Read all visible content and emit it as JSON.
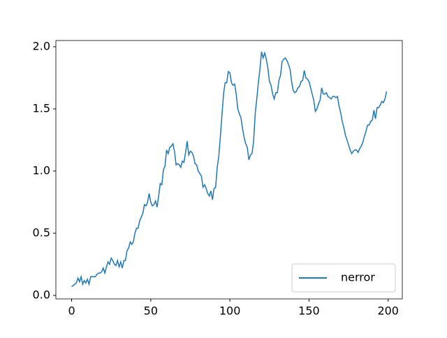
{
  "chart_data": {
    "type": "line",
    "x": [
      0,
      1,
      2,
      3,
      4,
      5,
      6,
      7,
      8,
      9,
      10,
      11,
      12,
      13,
      14,
      15,
      16,
      17,
      18,
      19,
      20,
      21,
      22,
      23,
      24,
      25,
      26,
      27,
      28,
      29,
      30,
      31,
      32,
      33,
      34,
      35,
      36,
      37,
      38,
      39,
      40,
      41,
      42,
      43,
      44,
      45,
      46,
      47,
      48,
      49,
      50,
      51,
      52,
      53,
      54,
      55,
      56,
      57,
      58,
      59,
      60,
      61,
      62,
      63,
      64,
      65,
      66,
      67,
      68,
      69,
      70,
      71,
      72,
      73,
      74,
      75,
      76,
      77,
      78,
      79,
      80,
      81,
      82,
      83,
      84,
      85,
      86,
      87,
      88,
      89,
      90,
      91,
      92,
      93,
      94,
      95,
      96,
      97,
      98,
      99,
      100,
      101,
      102,
      103,
      104,
      105,
      106,
      107,
      108,
      109,
      110,
      111,
      112,
      113,
      114,
      115,
      116,
      117,
      118,
      119,
      120,
      121,
      122,
      123,
      124,
      125,
      126,
      127,
      128,
      129,
      130,
      131,
      132,
      133,
      134,
      135,
      136,
      137,
      138,
      139,
      140,
      141,
      142,
      143,
      144,
      145,
      146,
      147,
      148,
      149,
      150,
      151,
      152,
      153,
      154,
      155,
      156,
      157,
      158,
      159,
      160,
      161,
      162,
      163,
      164,
      165,
      166,
      167,
      168,
      169,
      170,
      171,
      172,
      173,
      174,
      175,
      176,
      177,
      178,
      179,
      180,
      181,
      182,
      183,
      184,
      185,
      186,
      187,
      188,
      189,
      190,
      191,
      192,
      193,
      194,
      195,
      196,
      197,
      198,
      199
    ],
    "series": [
      {
        "name": "nerror",
        "color": "#1f77b4",
        "values": [
          0.07,
          0.08,
          0.09,
          0.1,
          0.14,
          0.11,
          0.15,
          0.09,
          0.12,
          0.1,
          0.13,
          0.09,
          0.15,
          0.15,
          0.15,
          0.15,
          0.17,
          0.18,
          0.18,
          0.19,
          0.22,
          0.18,
          0.23,
          0.27,
          0.25,
          0.3,
          0.28,
          0.25,
          0.24,
          0.28,
          0.23,
          0.27,
          0.22,
          0.28,
          0.28,
          0.36,
          0.38,
          0.43,
          0.41,
          0.43,
          0.5,
          0.54,
          0.54,
          0.6,
          0.63,
          0.66,
          0.73,
          0.72,
          0.75,
          0.82,
          0.75,
          0.72,
          0.73,
          0.76,
          0.71,
          0.8,
          0.9,
          0.89,
          1.01,
          1.04,
          1.17,
          1.14,
          1.19,
          1.2,
          1.22,
          1.16,
          1.05,
          1.06,
          1.05,
          1.03,
          1.08,
          1.07,
          1.15,
          1.24,
          1.13,
          1.16,
          1.15,
          1.12,
          1.06,
          1.05,
          1.0,
          0.98,
          0.96,
          0.87,
          0.89,
          0.86,
          0.82,
          0.8,
          0.84,
          0.77,
          0.86,
          0.87,
          1.03,
          1.12,
          1.28,
          1.45,
          1.62,
          1.71,
          1.71,
          1.8,
          1.79,
          1.71,
          1.69,
          1.7,
          1.62,
          1.5,
          1.46,
          1.43,
          1.34,
          1.27,
          1.22,
          1.19,
          1.09,
          1.13,
          1.14,
          1.24,
          1.46,
          1.58,
          1.71,
          1.82,
          1.96,
          1.91,
          1.95,
          1.9,
          1.83,
          1.72,
          1.69,
          1.62,
          1.58,
          1.63,
          1.63,
          1.73,
          1.77,
          1.88,
          1.9,
          1.91,
          1.89,
          1.86,
          1.82,
          1.72,
          1.65,
          1.63,
          1.64,
          1.67,
          1.68,
          1.72,
          1.73,
          1.81,
          1.75,
          1.74,
          1.72,
          1.67,
          1.62,
          1.57,
          1.48,
          1.5,
          1.54,
          1.57,
          1.67,
          1.62,
          1.62,
          1.63,
          1.6,
          1.59,
          1.58,
          1.6,
          1.6,
          1.59,
          1.6,
          1.52,
          1.47,
          1.4,
          1.35,
          1.29,
          1.25,
          1.21,
          1.17,
          1.14,
          1.16,
          1.17,
          1.17,
          1.15,
          1.18,
          1.2,
          1.23,
          1.28,
          1.32,
          1.37,
          1.37,
          1.4,
          1.41,
          1.49,
          1.42,
          1.51,
          1.51,
          1.53,
          1.56,
          1.55,
          1.58,
          1.64
        ]
      }
    ],
    "xlim": [
      -9.95,
      208.95
    ],
    "xticks": [
      0,
      50,
      100,
      150,
      200
    ],
    "ylim": [
      -0.028,
      2.05
    ],
    "yticks": [
      {
        "value": 0,
        "label": "0.0"
      },
      0.5,
      {
        "value": 1,
        "label": "1.0"
      },
      1.5,
      {
        "value": 2,
        "label": "2.0"
      }
    ],
    "legend": "lower right"
  }
}
